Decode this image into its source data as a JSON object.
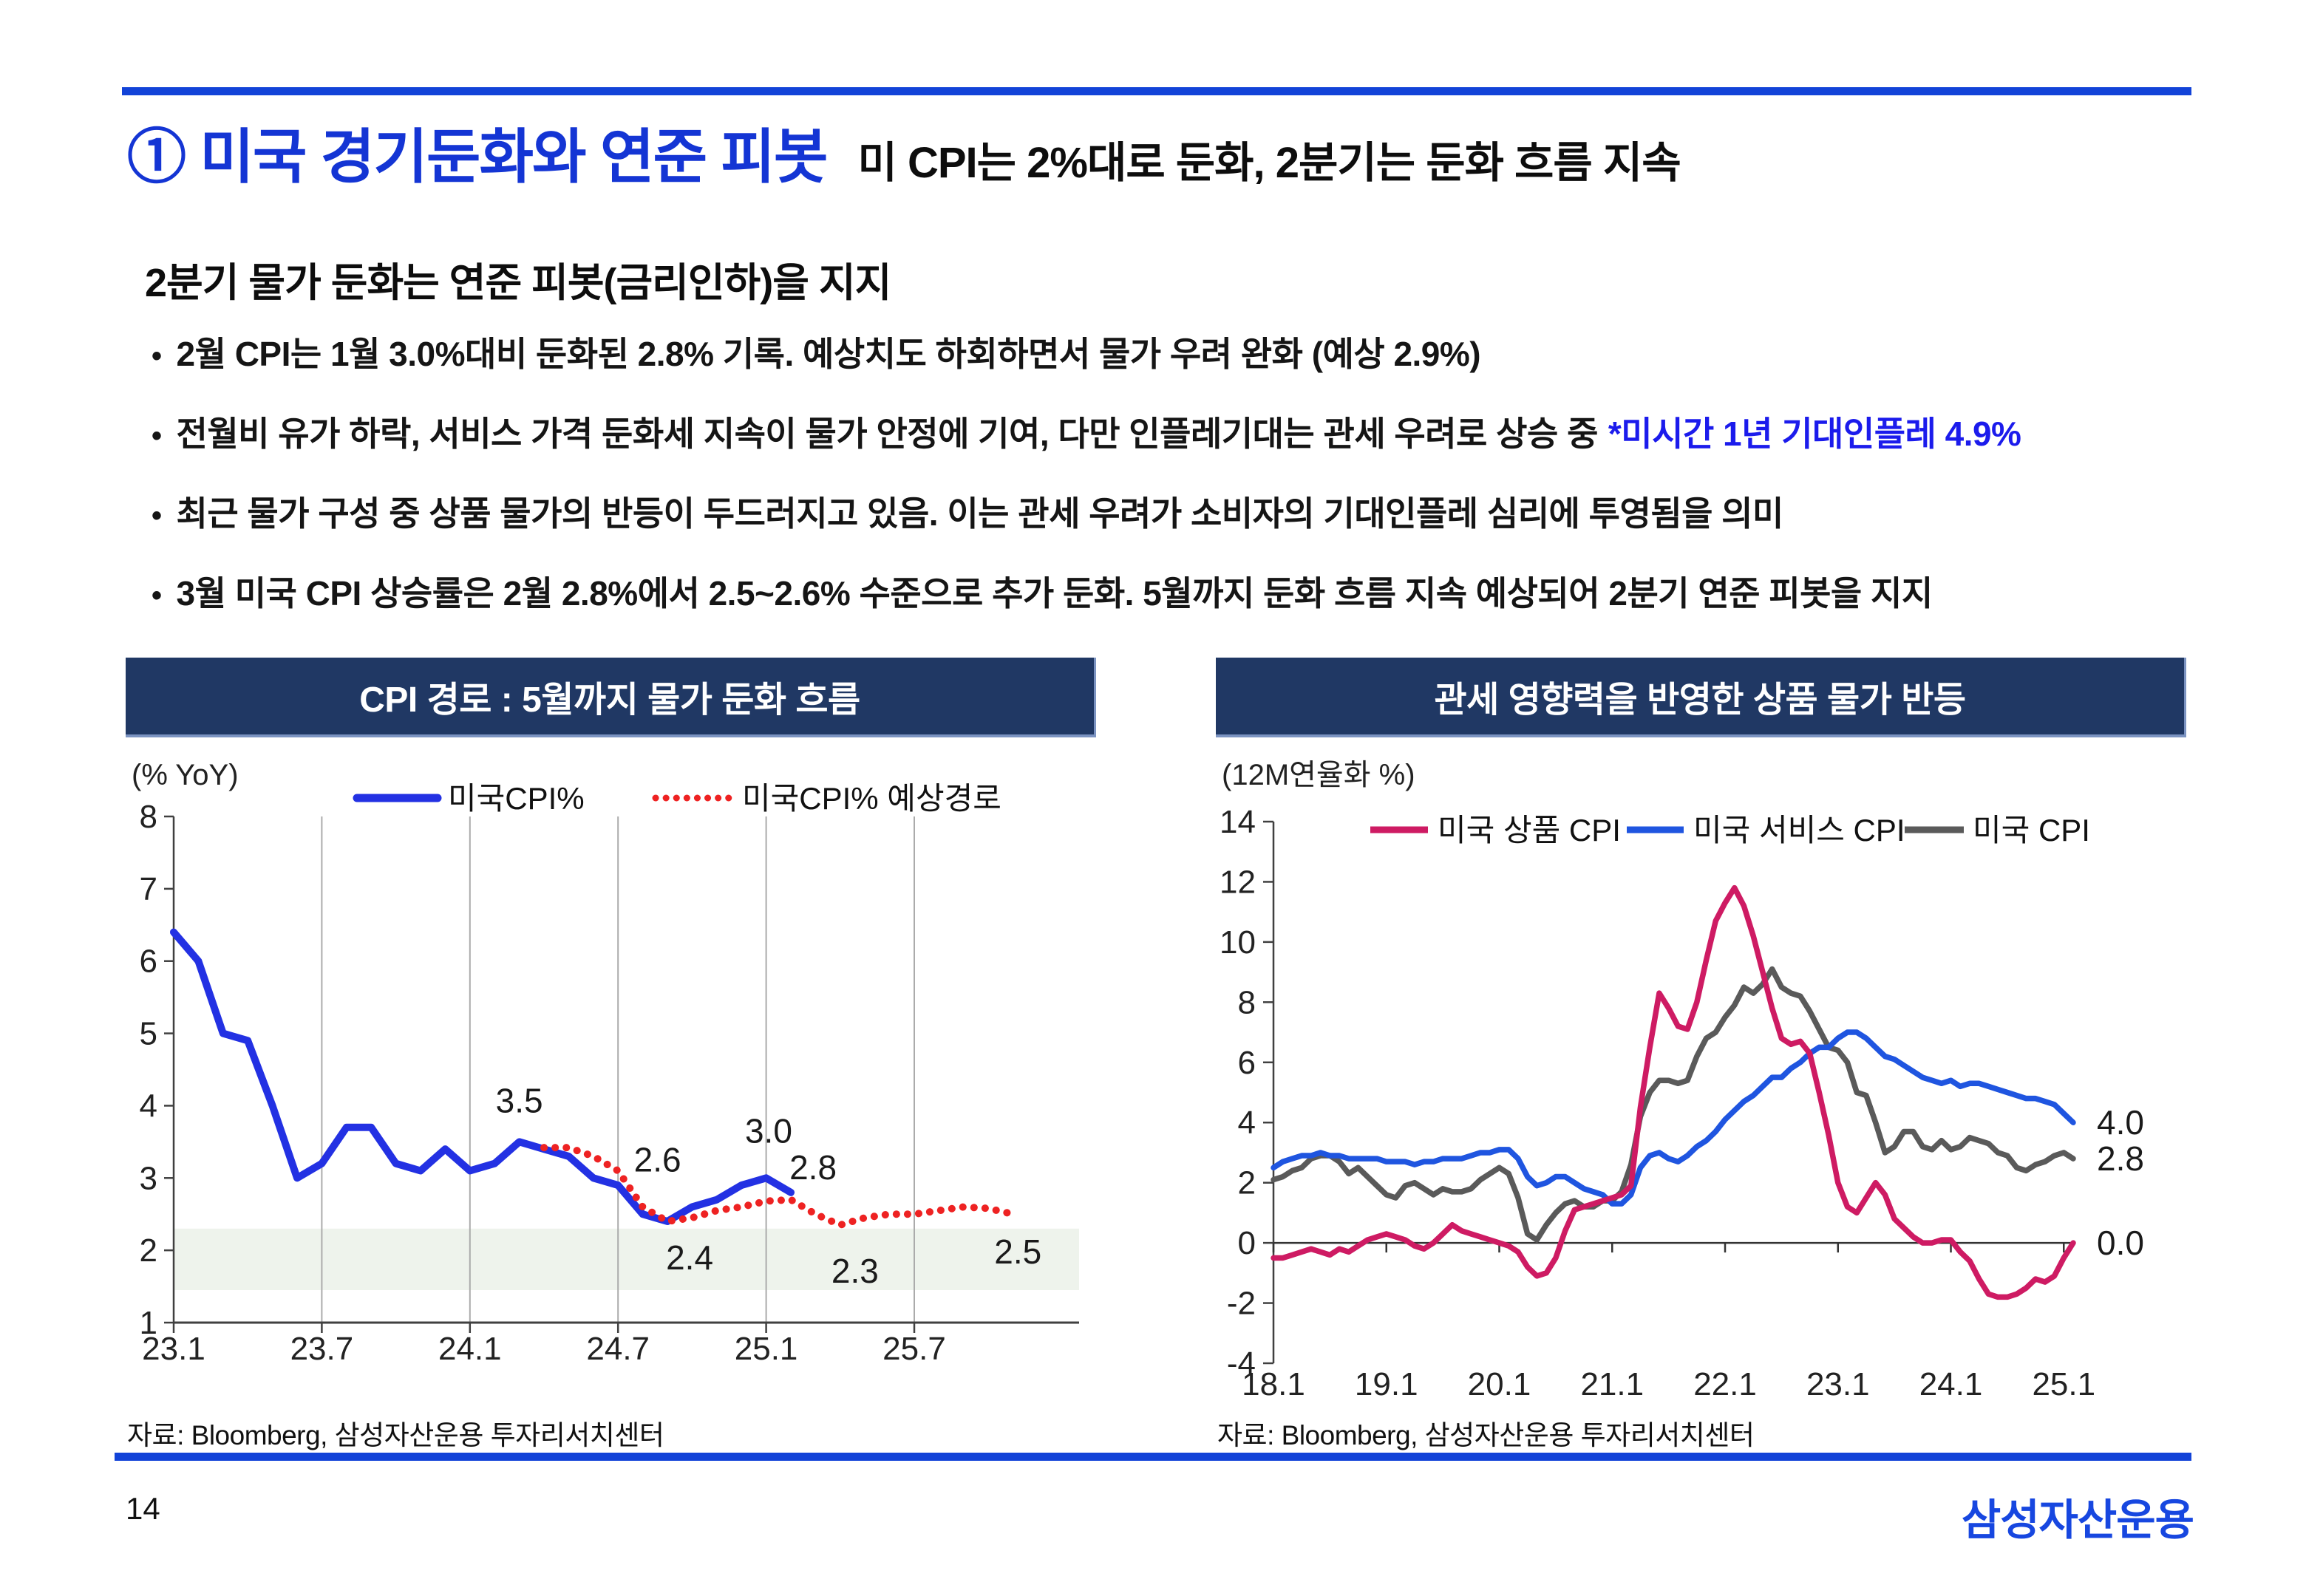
{
  "page": {
    "number": "14",
    "logo": "삼성자산운용",
    "accent_blue": "#1243d8",
    "navy": "#203864"
  },
  "header": {
    "title": "① 미국 경기둔화와 연준 피봇",
    "title_suffix": "미 CPI는 2%대로 둔화, 2분기는 둔화 흐름 지속",
    "subtitle": "2분기 물가 둔화는 연준 피봇(금리인하)을 지지"
  },
  "bullets": [
    {
      "text": "2월 CPI는 1월 3.0%대비 둔화된 2.8% 기록. 예상치도 하회하면서 물가 우려 완화 (예상 2.9%)",
      "note": ""
    },
    {
      "text": "전월비 유가 하락, 서비스 가격 둔화세 지속이 물가 안정에 기여, 다만 인플레기대는 관세 우려로 상승 중",
      "note": "*미시간 1년 기대인플레 4.9%"
    },
    {
      "text": "최근 물가 구성 중 상품 물가의 반등이 두드러지고 있음. 이는 관세 우려가 소비자의 기대인플레 심리에 투영됨을 의미",
      "note": ""
    },
    {
      "text": "3월 미국 CPI 상승률은 2월 2.8%에서 2.5~2.6% 수준으로 추가 둔화. 5월까지 둔화 흐름 지속 예상되어 2분기 연준 피봇을 지지",
      "note": ""
    }
  ],
  "left_panel": {
    "header": "CPI 경로 : 5월까지 물가 둔화 흐름",
    "source": "자료: Bloomberg, 삼성자산운용 투자리서치센터"
  },
  "right_panel": {
    "header": "관세 영향력을 반영한 상품 물가 반등",
    "source": "자료: Bloomberg, 삼성자산운용 투자리서치센터"
  },
  "chart_data": [
    {
      "type": "line",
      "title": "CPI 경로 : 5월까지 물가 둔화 흐름",
      "ylabel": "(% YoY)",
      "ylim": [
        1,
        8
      ],
      "yticks": [
        1,
        2,
        3,
        4,
        5,
        6,
        7,
        8
      ],
      "x_count": 36,
      "xtick_labels": [
        "23.1",
        "23.7",
        "24.1",
        "24.7",
        "25.1",
        "25.7"
      ],
      "xtick_index": [
        0,
        6,
        12,
        18,
        24,
        30
      ],
      "grid": "vertical",
      "legend_position": "top",
      "band": {
        "from": 1.45,
        "to": 2.3,
        "color": "#eef3ec"
      },
      "series": [
        {
          "name": "미국CPI%",
          "color": "#2331e3",
          "style": "solid",
          "start_index": 0,
          "values": [
            6.4,
            6.0,
            5.0,
            4.9,
            4.0,
            3.0,
            3.2,
            3.7,
            3.7,
            3.2,
            3.1,
            3.4,
            3.1,
            3.2,
            3.5,
            3.4,
            3.3,
            3.0,
            2.9,
            2.5,
            2.4,
            2.6,
            2.7,
            2.9,
            3.0,
            2.8
          ]
        },
        {
          "name": "미국CPI% 예상경로",
          "color": "#ee2222",
          "style": "dotted",
          "start_index": 15,
          "values": [
            3.42,
            3.42,
            3.3,
            3.1,
            2.6,
            2.4,
            2.45,
            2.55,
            2.6,
            2.68,
            2.7,
            2.5,
            2.35,
            2.45,
            2.5,
            2.5,
            2.55,
            2.6,
            2.58,
            2.5
          ]
        }
      ],
      "annotations": [
        {
          "label": "3.5",
          "xi": 14,
          "y": 3.5,
          "dy": -40
        },
        {
          "label": "2.6",
          "xi": 19.6,
          "y": 2.6,
          "dy": -48
        },
        {
          "label": "2.4",
          "xi": 20.9,
          "y": 2.4,
          "dy": 65
        },
        {
          "label": "3.0",
          "xi": 24.1,
          "y": 3.0,
          "dy": -48
        },
        {
          "label": "2.8",
          "xi": 25.9,
          "y": 2.8,
          "dy": -18
        },
        {
          "label": "2.3",
          "xi": 27.6,
          "y": 2.3,
          "dy": 73
        },
        {
          "label": "2.5",
          "xi": 34.2,
          "y": 2.5,
          "dy": 67
        }
      ]
    },
    {
      "type": "line",
      "title": "관세 영향력을 반영한 상품 물가 반등",
      "ylabel": "(12M연율화 %)",
      "ylim": [
        -4,
        14
      ],
      "yticks": [
        -4,
        -2,
        0,
        2,
        4,
        6,
        8,
        10,
        12,
        14
      ],
      "x_count": 86,
      "xtick_labels": [
        "18.1",
        "19.1",
        "20.1",
        "21.1",
        "22.1",
        "23.1",
        "24.1",
        "25.1"
      ],
      "xtick_index": [
        0,
        12,
        24,
        36,
        48,
        60,
        72,
        84
      ],
      "grid": "none",
      "zero_line": true,
      "legend_position": "top",
      "series": [
        {
          "name": "미국 상품 CPI",
          "color": "#ce1b63",
          "style": "solid",
          "values": [
            -0.5,
            -0.5,
            -0.4,
            -0.3,
            -0.2,
            -0.3,
            -0.4,
            -0.2,
            -0.3,
            -0.1,
            0.1,
            0.2,
            0.3,
            0.2,
            0.1,
            -0.1,
            -0.2,
            0.0,
            0.3,
            0.6,
            0.4,
            0.3,
            0.2,
            0.1,
            0.0,
            -0.1,
            -0.3,
            -0.8,
            -1.1,
            -1.0,
            -0.5,
            0.4,
            1.1,
            1.2,
            1.3,
            1.4,
            1.5,
            1.6,
            1.9,
            4.5,
            6.5,
            8.3,
            7.8,
            7.2,
            7.1,
            8.0,
            9.4,
            10.7,
            11.3,
            11.8,
            11.2,
            10.2,
            9.0,
            7.8,
            6.8,
            6.6,
            6.7,
            6.3,
            5.0,
            3.6,
            2.0,
            1.2,
            1.0,
            1.5,
            2.0,
            1.6,
            0.8,
            0.5,
            0.2,
            0.0,
            0.0,
            0.1,
            0.1,
            -0.3,
            -0.6,
            -1.2,
            -1.7,
            -1.8,
            -1.8,
            -1.7,
            -1.5,
            -1.2,
            -1.3,
            -1.1,
            -0.5,
            0.0
          ]
        },
        {
          "name": "미국 서비스 CPI",
          "color": "#1f55e0",
          "style": "solid",
          "values": [
            2.5,
            2.7,
            2.8,
            2.9,
            2.9,
            3.0,
            2.9,
            2.9,
            2.8,
            2.8,
            2.8,
            2.8,
            2.7,
            2.7,
            2.7,
            2.6,
            2.7,
            2.7,
            2.8,
            2.8,
            2.8,
            2.9,
            3.0,
            3.0,
            3.1,
            3.1,
            2.8,
            2.2,
            1.9,
            2.0,
            2.2,
            2.2,
            2.0,
            1.8,
            1.7,
            1.6,
            1.3,
            1.3,
            1.6,
            2.5,
            2.9,
            3.0,
            2.8,
            2.7,
            2.9,
            3.2,
            3.4,
            3.7,
            4.1,
            4.4,
            4.7,
            4.9,
            5.2,
            5.5,
            5.5,
            5.8,
            6.0,
            6.3,
            6.5,
            6.5,
            6.8,
            7.0,
            7.0,
            6.8,
            6.5,
            6.2,
            6.1,
            5.9,
            5.7,
            5.5,
            5.4,
            5.3,
            5.4,
            5.2,
            5.3,
            5.3,
            5.2,
            5.1,
            5.0,
            4.9,
            4.8,
            4.8,
            4.7,
            4.6,
            4.3,
            4.0
          ]
        },
        {
          "name": "미국 CPI",
          "color": "#5a5a5a",
          "style": "solid",
          "values": [
            2.1,
            2.2,
            2.4,
            2.5,
            2.8,
            2.9,
            2.9,
            2.7,
            2.3,
            2.5,
            2.2,
            1.9,
            1.6,
            1.5,
            1.9,
            2.0,
            1.8,
            1.6,
            1.8,
            1.7,
            1.7,
            1.8,
            2.1,
            2.3,
            2.5,
            2.3,
            1.5,
            0.3,
            0.1,
            0.6,
            1.0,
            1.3,
            1.4,
            1.2,
            1.2,
            1.4,
            1.4,
            1.7,
            2.6,
            4.2,
            5.0,
            5.4,
            5.4,
            5.3,
            5.4,
            6.2,
            6.8,
            7.0,
            7.5,
            7.9,
            8.5,
            8.3,
            8.6,
            9.1,
            8.5,
            8.3,
            8.2,
            7.7,
            7.1,
            6.5,
            6.4,
            6.0,
            5.0,
            4.9,
            4.0,
            3.0,
            3.2,
            3.7,
            3.7,
            3.2,
            3.1,
            3.4,
            3.1,
            3.2,
            3.5,
            3.4,
            3.3,
            3.0,
            2.9,
            2.5,
            2.4,
            2.6,
            2.7,
            2.9,
            3.0,
            2.8
          ]
        }
      ],
      "end_labels": [
        {
          "label": "4.0",
          "y": 4.0
        },
        {
          "label": "2.8",
          "y": 2.8
        },
        {
          "label": "0.0",
          "y": 0.0
        }
      ]
    }
  ]
}
